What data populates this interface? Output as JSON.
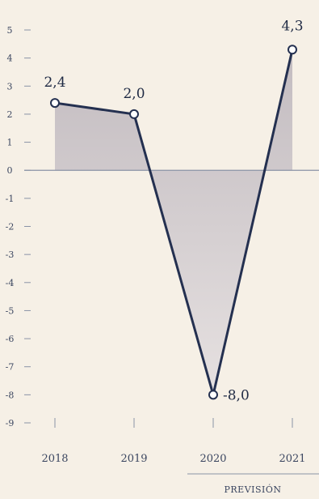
{
  "chart_data": {
    "type": "line",
    "categories": [
      "2018",
      "2019",
      "2020",
      "2021"
    ],
    "series": [
      {
        "values": [
          2.4,
          2.0,
          -8.0,
          4.3
        ]
      }
    ],
    "data_labels": [
      "2,4",
      "2,0",
      "-8,0",
      "4,3"
    ],
    "y_ticks": [
      5,
      4,
      3,
      2,
      1,
      0,
      -1,
      -2,
      -3,
      -4,
      -5,
      -6,
      -7,
      -8,
      -9
    ],
    "ylim": [
      -9,
      5
    ],
    "title": "",
    "xlabel": "",
    "ylabel": "",
    "annotation": "PREVISIÓN",
    "area_fill": true,
    "grid": false,
    "colors": {
      "line": "#243050",
      "area": "#c9c3c6",
      "axis": "#8a93a6",
      "marker_fill": "#ffffff",
      "background": "#f6f0e6"
    }
  }
}
